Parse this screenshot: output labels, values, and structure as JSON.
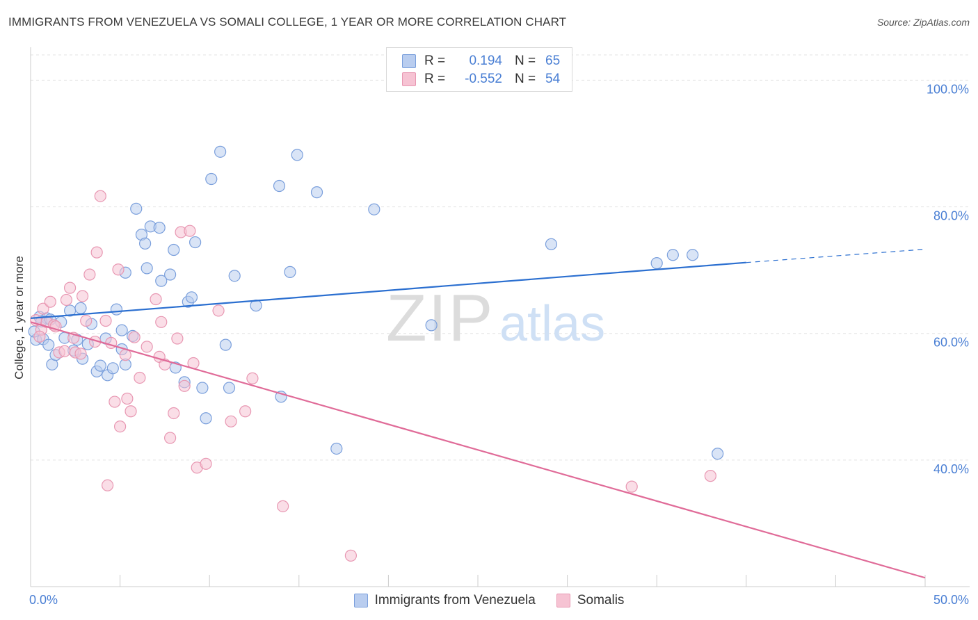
{
  "title": "IMMIGRANTS FROM VENEZUELA VS SOMALI COLLEGE, 1 YEAR OR MORE CORRELATION CHART",
  "source": "Source: ZipAtlas.com",
  "watermark": {
    "zip": "ZIP",
    "atlas": "atlas"
  },
  "legend": {
    "rows": [
      {
        "r_label": "R =",
        "r_value": "0.194",
        "n_label": "N =",
        "n_value": "65"
      },
      {
        "r_label": "R =",
        "r_value": "-0.552",
        "n_label": "N =",
        "n_value": "54"
      }
    ]
  },
  "colors": {
    "blue_fill": "#b9cdef",
    "blue_stroke": "#7a9fdc",
    "blue_line": "#2b6fd0",
    "pink_fill": "#f6c3d3",
    "pink_stroke": "#e897b2",
    "pink_line": "#e06b98",
    "tick_label": "#4a7fd4",
    "grid": "#e3e3e3"
  },
  "chart_data": {
    "type": "scatter",
    "title": "IMMIGRANTS FROM VENEZUELA VS SOMALI COLLEGE, 1 YEAR OR MORE CORRELATION CHART",
    "xlabel": "",
    "ylabel": "College, 1 year or more",
    "xlim": [
      0,
      50
    ],
    "ylim": [
      20,
      104
    ],
    "x_tick_labels": [
      "0.0%",
      "50.0%"
    ],
    "y_ticks": [
      40,
      60,
      80,
      100
    ],
    "y_tick_labels": [
      "40.0%",
      "60.0%",
      "80.0%",
      "100.0%"
    ],
    "grid": true,
    "legend_position": "top-center",
    "series": [
      {
        "name": "Immigrants from Venezuela",
        "r": 0.194,
        "n": 65,
        "trend": {
          "x0": 0,
          "y0": 62.4,
          "x1": 40,
          "y1": 71.2,
          "dashed_to_x": 50,
          "dashed_to_y": 73.3
        },
        "points": [
          [
            0.3,
            59.0
          ],
          [
            0.5,
            62.6
          ],
          [
            0.7,
            59.1
          ],
          [
            0.9,
            62.4
          ],
          [
            1.0,
            58.2
          ],
          [
            1.2,
            55.1
          ],
          [
            1.4,
            56.6
          ],
          [
            1.7,
            61.8
          ],
          [
            1.9,
            59.3
          ],
          [
            2.2,
            63.6
          ],
          [
            2.4,
            57.3
          ],
          [
            2.6,
            59.0
          ],
          [
            2.8,
            64.0
          ],
          [
            2.9,
            56.0
          ],
          [
            3.2,
            58.3
          ],
          [
            3.4,
            61.5
          ],
          [
            3.7,
            54.0
          ],
          [
            3.9,
            54.9
          ],
          [
            4.2,
            59.2
          ],
          [
            4.3,
            53.4
          ],
          [
            4.6,
            54.5
          ],
          [
            4.8,
            63.8
          ],
          [
            5.1,
            57.5
          ],
          [
            5.1,
            60.5
          ],
          [
            5.3,
            69.6
          ],
          [
            5.3,
            55.1
          ],
          [
            5.7,
            59.6
          ],
          [
            5.9,
            79.7
          ],
          [
            6.2,
            75.6
          ],
          [
            6.4,
            74.2
          ],
          [
            6.5,
            70.3
          ],
          [
            6.7,
            76.9
          ],
          [
            7.2,
            76.7
          ],
          [
            7.3,
            68.3
          ],
          [
            7.8,
            69.3
          ],
          [
            8.0,
            73.2
          ],
          [
            8.1,
            54.6
          ],
          [
            8.6,
            52.3
          ],
          [
            8.8,
            65.0
          ],
          [
            9.2,
            74.4
          ],
          [
            9.0,
            65.7
          ],
          [
            9.6,
            51.4
          ],
          [
            9.8,
            46.6
          ],
          [
            10.1,
            84.4
          ],
          [
            10.6,
            88.7
          ],
          [
            10.9,
            58.2
          ],
          [
            11.1,
            51.4
          ],
          [
            11.4,
            69.1
          ],
          [
            12.6,
            64.4
          ],
          [
            13.9,
            83.3
          ],
          [
            14.0,
            50.0
          ],
          [
            14.5,
            69.7
          ],
          [
            14.9,
            88.2
          ],
          [
            16.0,
            82.3
          ],
          [
            17.1,
            41.8
          ],
          [
            19.2,
            79.6
          ],
          [
            22.4,
            61.3
          ],
          [
            29.1,
            74.1
          ],
          [
            35.0,
            71.1
          ],
          [
            35.9,
            72.4
          ],
          [
            37.0,
            72.4
          ],
          [
            38.4,
            41.0
          ],
          [
            0.2,
            60.3
          ],
          [
            0.6,
            61.9
          ],
          [
            1.1,
            62.2
          ]
        ]
      },
      {
        "name": "Somalis",
        "r": -0.552,
        "n": 54,
        "trend": {
          "x0": 0,
          "y0": 61.8,
          "x1": 50,
          "y1": 21.4
        },
        "points": [
          [
            0.3,
            62.1
          ],
          [
            0.6,
            60.6
          ],
          [
            0.7,
            63.9
          ],
          [
            0.9,
            61.8
          ],
          [
            1.1,
            65.0
          ],
          [
            1.3,
            61.3
          ],
          [
            1.6,
            57.0
          ],
          [
            1.9,
            57.2
          ],
          [
            2.0,
            65.3
          ],
          [
            2.2,
            67.2
          ],
          [
            2.4,
            59.3
          ],
          [
            2.5,
            57.0
          ],
          [
            2.9,
            65.9
          ],
          [
            3.1,
            62.0
          ],
          [
            3.3,
            69.3
          ],
          [
            3.6,
            58.7
          ],
          [
            3.7,
            72.8
          ],
          [
            3.9,
            81.7
          ],
          [
            4.2,
            62.0
          ],
          [
            4.3,
            36.0
          ],
          [
            4.5,
            58.5
          ],
          [
            4.7,
            49.2
          ],
          [
            4.9,
            70.1
          ],
          [
            5.0,
            45.3
          ],
          [
            5.3,
            56.6
          ],
          [
            5.4,
            49.7
          ],
          [
            5.6,
            47.7
          ],
          [
            5.8,
            59.4
          ],
          [
            6.1,
            53.0
          ],
          [
            6.5,
            57.9
          ],
          [
            7.0,
            65.4
          ],
          [
            7.2,
            56.3
          ],
          [
            7.3,
            61.8
          ],
          [
            7.5,
            55.1
          ],
          [
            7.8,
            43.5
          ],
          [
            8.0,
            47.4
          ],
          [
            8.2,
            59.2
          ],
          [
            8.4,
            76.0
          ],
          [
            8.6,
            51.7
          ],
          [
            8.9,
            76.2
          ],
          [
            9.1,
            55.3
          ],
          [
            9.3,
            38.8
          ],
          [
            9.8,
            39.4
          ],
          [
            10.5,
            63.6
          ],
          [
            11.2,
            46.1
          ],
          [
            12.0,
            47.7
          ],
          [
            12.4,
            52.9
          ],
          [
            14.1,
            32.7
          ],
          [
            17.9,
            24.9
          ],
          [
            33.6,
            35.8
          ],
          [
            38.0,
            37.5
          ],
          [
            0.5,
            59.5
          ],
          [
            1.4,
            61.1
          ],
          [
            2.8,
            56.8
          ]
        ]
      }
    ]
  }
}
